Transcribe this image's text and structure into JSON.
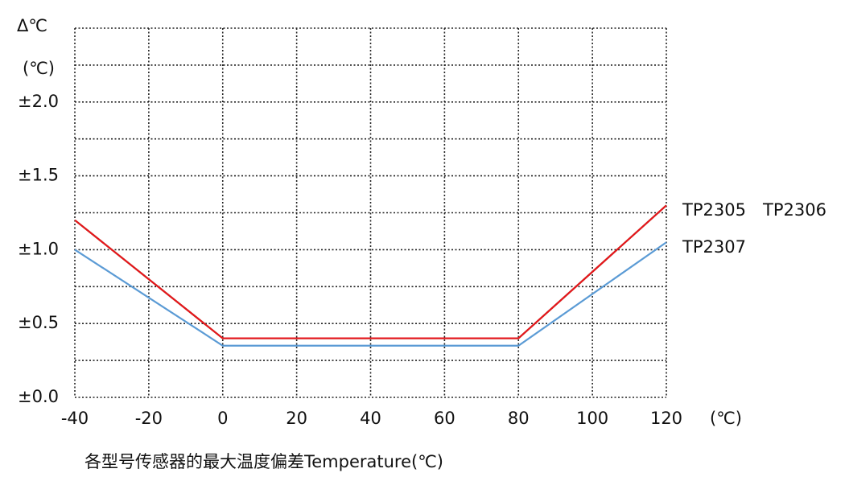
{
  "chart_data": {
    "type": "line",
    "y_label": [
      "Δ℃",
      "(℃)"
    ],
    "x_unit": "(℃)",
    "x_label": "各型号传感器的最大温度偏差Temperature(℃)",
    "x": [
      -40,
      0,
      80,
      120
    ],
    "series": [
      {
        "name": "TP2306",
        "color": "#2e9a3a",
        "values": [
          1.2,
          0.4,
          0.4,
          1.3
        ]
      },
      {
        "name": "TP2305",
        "color": "#e8141c",
        "values": [
          1.2,
          0.4,
          0.4,
          1.3
        ]
      },
      {
        "name": "TP2307",
        "color": "#5b9bd5",
        "values": [
          1.0,
          0.35,
          0.35,
          1.05
        ]
      }
    ],
    "xlim": [
      -40,
      120
    ],
    "ylim": [
      0,
      2.5
    ],
    "xticks": [
      -40,
      -20,
      0,
      20,
      40,
      60,
      80,
      100,
      120
    ],
    "yticks": [
      {
        "value": 0,
        "label": "±0.0"
      },
      {
        "value": 0.5,
        "label": "±0.5"
      },
      {
        "value": 1.0,
        "label": "±1.0"
      },
      {
        "value": 1.5,
        "label": "±1.5"
      },
      {
        "value": 2.0,
        "label": "±2.0"
      }
    ],
    "minor_yticks": [
      0.25,
      0.75,
      1.25,
      1.75,
      2.25,
      2.5
    ],
    "grid": true
  }
}
